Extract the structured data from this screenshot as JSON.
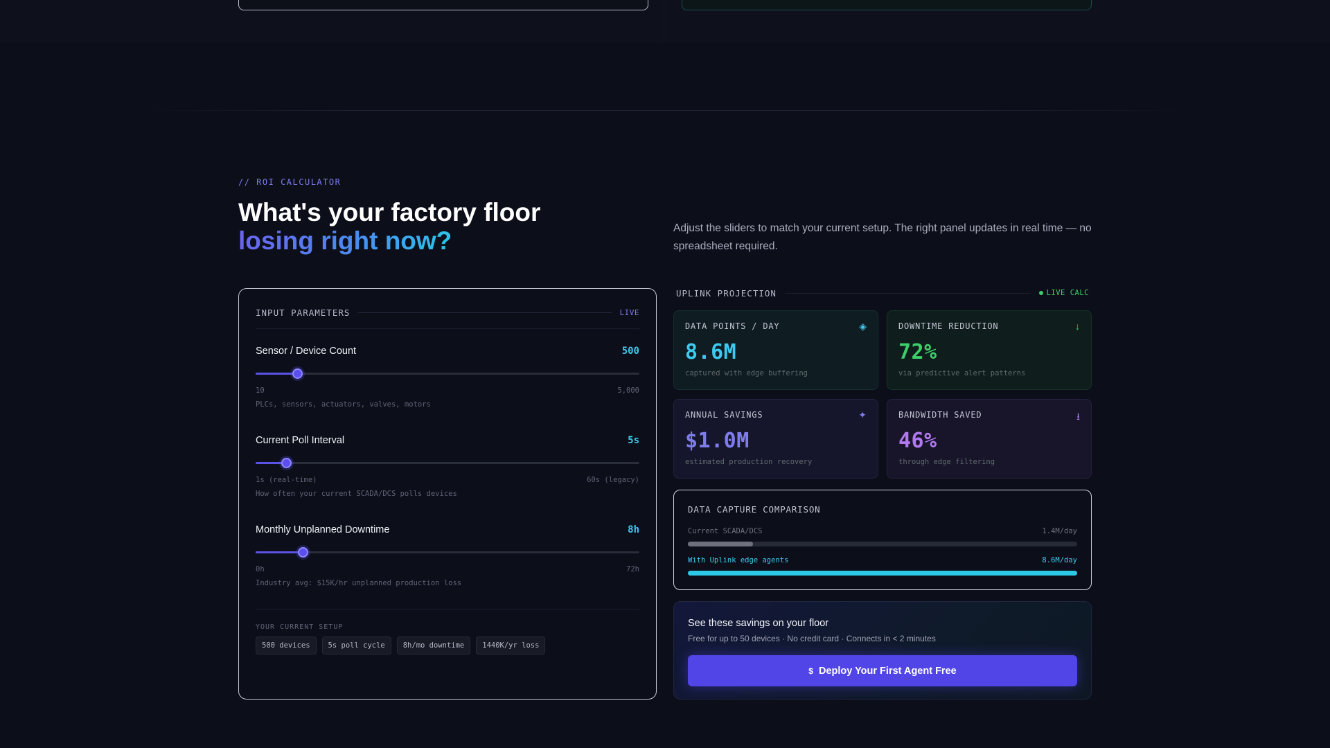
{
  "roi": {
    "eyebrow": "// ROI CALCULATOR",
    "headline_line1": "What's your factory floor",
    "headline_line2": "losing right now?",
    "intro": "Adjust the sliders to match your current setup. The right panel updates in real time — no spreadsheet required."
  },
  "inputs": {
    "label": "INPUT PARAMETERS",
    "live": "LIVE",
    "params": [
      {
        "title": "Sensor / Device Count",
        "value_text": "500",
        "value": 500,
        "min": 10,
        "max": 5000,
        "min_label": "10",
        "max_label": "5,000",
        "hint": "PLCs, sensors, actuators, valves, motors",
        "fill_fraction": 0.11
      },
      {
        "title": "Current Poll Interval",
        "value_text": "5s",
        "value": 5,
        "min": 1,
        "max": 60,
        "min_label": "1s (real-time)",
        "max_label": "60s (legacy)",
        "hint": "How often your current SCADA/DCS polls devices",
        "fill_fraction": 0.08
      },
      {
        "title": "Monthly Unplanned Downtime",
        "value_text": "8h",
        "value": 8,
        "min": 0,
        "max": 72,
        "min_label": "0h",
        "max_label": "72h",
        "hint": "Industry avg: $15K/hr unplanned production loss",
        "fill_fraction": 0.123
      }
    ],
    "setup_label": "YOUR CURRENT SETUP",
    "setup_tags": [
      "500 devices",
      "5s poll cycle",
      "8h/mo downtime",
      "1440K/yr loss"
    ]
  },
  "projection": {
    "label": "UPLINK PROJECTION",
    "live": "LIVE CALC",
    "metrics": [
      {
        "label": "DATA POINTS / DAY",
        "value": "8.6M",
        "note": "captured with edge buffering",
        "icon": "diamond-icon",
        "glyph": "◈",
        "color": "#3ec9ee"
      },
      {
        "label": "DOWNTIME REDUCTION",
        "value": "72%",
        "note": "via predictive alert patterns",
        "icon": "arrow-down-icon",
        "glyph": "↓",
        "color": "#3ccf6a"
      },
      {
        "label": "ANNUAL SAVINGS",
        "value": "$1.0M",
        "note": "estimated production recovery",
        "icon": "sparkle-icon",
        "glyph": "✦",
        "color": "#7f7cf0"
      },
      {
        "label": "BANDWIDTH SAVED",
        "value": "46%",
        "note": "through edge filtering",
        "icon": "download-arrow-icon",
        "glyph": "⭳",
        "color": "#b079ee"
      }
    ],
    "comparison": {
      "title": "DATA CAPTURE COMPARISON",
      "rows": [
        {
          "label": "Current SCADA/DCS",
          "value": "1.4M/day",
          "fraction": 0.167,
          "color": "#6e717d"
        },
        {
          "label": "With Uplink edge agents",
          "value": "8.6M/day",
          "fraction": 1.0,
          "color": "#2cc8e6"
        }
      ]
    },
    "cta": {
      "title": "See these savings on your floor",
      "subtitle": "Free for up to 50 devices · No credit card · Connects in < 2 minutes",
      "button_label": "Deploy Your First Agent Free",
      "button_icon": "dollar-icon",
      "button_glyph": "$"
    }
  }
}
